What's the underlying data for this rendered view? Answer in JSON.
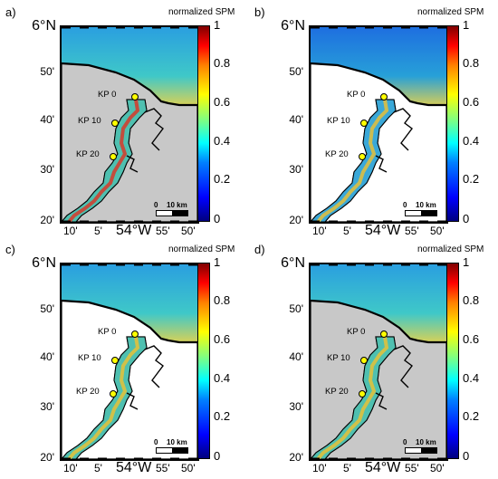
{
  "colorbar": {
    "title": "normalized SPM",
    "ticks": [
      "1",
      "0.8",
      "0.6",
      "0.4",
      "0.2",
      "0"
    ]
  },
  "axes": {
    "top_lat": "6°N",
    "lat_ticks": [
      "50'",
      "40'",
      "30'",
      "20'"
    ],
    "lon_ticks": [
      "10'",
      "5'",
      "54°W",
      "55'",
      "50'"
    ]
  },
  "markers": [
    "KP 0",
    "KP 10",
    "KP 20"
  ],
  "scale_bar": {
    "zero": "0",
    "label": "10 km"
  },
  "panels": [
    {
      "letter": "a)"
    },
    {
      "letter": "b)"
    },
    {
      "letter": "c)"
    },
    {
      "letter": "d)"
    }
  ]
}
